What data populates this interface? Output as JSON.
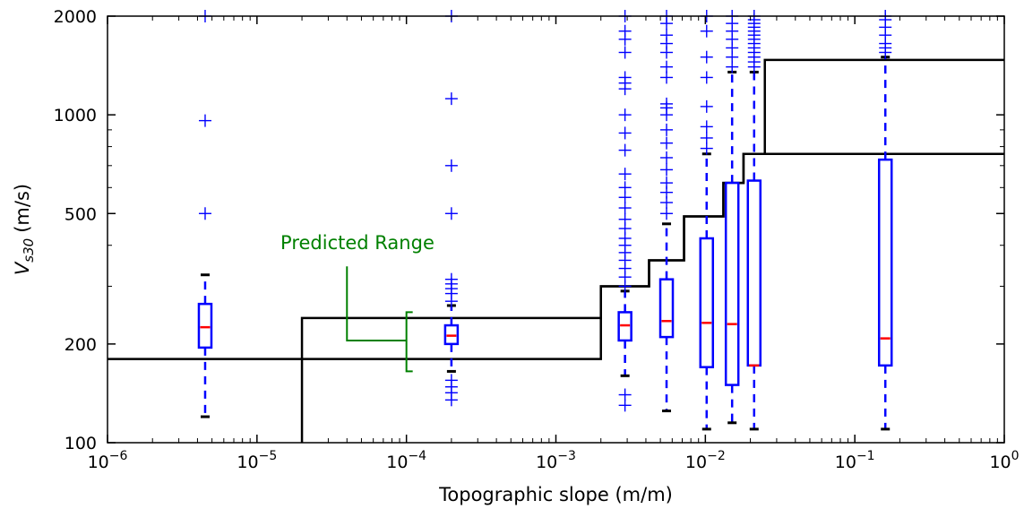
{
  "chart_data": {
    "type": "box",
    "title": "",
    "xlabel": "Topographic slope (m/m)",
    "ylabel": {
      "symbol_main": "V",
      "symbol_sub": "s30",
      "unit": "(m/s)"
    },
    "x_scale": "log",
    "y_scale": "log",
    "xlim": [
      1e-06,
      1
    ],
    "ylim": [
      100,
      2000
    ],
    "x_ticks": [
      {
        "value": 1e-06,
        "base": "10",
        "exp": "−6"
      },
      {
        "value": 1e-05,
        "base": "10",
        "exp": "−5"
      },
      {
        "value": 0.0001,
        "base": "10",
        "exp": "−4"
      },
      {
        "value": 0.001,
        "base": "10",
        "exp": "−3"
      },
      {
        "value": 0.01,
        "base": "10",
        "exp": "−2"
      },
      {
        "value": 0.1,
        "base": "10",
        "exp": "−1"
      },
      {
        "value": 1,
        "base": "10",
        "exp": "0"
      }
    ],
    "y_ticks": [
      {
        "value": 100,
        "label": "100"
      },
      {
        "value": 200,
        "label": "200"
      },
      {
        "value": 500,
        "label": "500"
      },
      {
        "value": 1000,
        "label": "1000"
      },
      {
        "value": 2000,
        "label": "2000"
      }
    ],
    "grid": false,
    "colors": {
      "box": "#0000ff",
      "median": "#ff0000",
      "step": "#000000",
      "annotation": "#008000",
      "cap": "#000000"
    },
    "boxes": [
      {
        "x": 4.5e-06,
        "q1": 195,
        "median": 225,
        "q3": 265,
        "whisker_low": 120,
        "whisker_high": 325,
        "fliers": [
          500,
          960,
          2000
        ]
      },
      {
        "x": 0.0002,
        "q1": 200,
        "median": 212,
        "q3": 228,
        "whisker_low": 165,
        "whisker_high": 262,
        "fliers": [
          135,
          142,
          148,
          155,
          270,
          285,
          295,
          305,
          315,
          500,
          700,
          1120,
          2000
        ]
      },
      {
        "x": 0.0029,
        "q1": 205,
        "median": 228,
        "q3": 250,
        "whisker_low": 160,
        "whisker_high": 290,
        "fliers": [
          130,
          140,
          300,
          320,
          340,
          360,
          380,
          400,
          420,
          450,
          480,
          520,
          560,
          600,
          660,
          780,
          880,
          1000,
          1200,
          1250,
          1300,
          1550,
          1700,
          1800,
          2000
        ]
      },
      {
        "x": 0.0055,
        "q1": 210,
        "median": 235,
        "q3": 315,
        "whisker_low": 125,
        "whisker_high": 465,
        "fliers": [
          500,
          540,
          580,
          620,
          680,
          740,
          820,
          900,
          1000,
          1050,
          1080,
          1300,
          1400,
          1550,
          1650,
          1750,
          1900,
          2000
        ]
      },
      {
        "x": 0.0102,
        "q1": 170,
        "median": 232,
        "q3": 420,
        "whisker_low": 110,
        "whisker_high": 760,
        "fliers": [
          790,
          850,
          920,
          1060,
          1300,
          1500,
          1800,
          2000
        ]
      },
      {
        "x": 0.0151,
        "q1": 150,
        "median": 230,
        "q3": 620,
        "whisker_low": 115,
        "whisker_high": 1350,
        "fliers": [
          1400,
          1500,
          1600,
          1700,
          1800,
          1900,
          2000
        ]
      },
      {
        "x": 0.0212,
        "q1": 172,
        "median": 172,
        "q3": 630,
        "whisker_low": 110,
        "whisker_high": 1350,
        "fliers": [
          1400,
          1450,
          1500,
          1550,
          1600,
          1650,
          1700,
          1750,
          1800,
          1850,
          1900,
          1950,
          2000
        ]
      },
      {
        "x": 0.16,
        "q1": 172,
        "median": 208,
        "q3": 730,
        "whisker_low": 110,
        "whisker_high": 1500,
        "fliers": [
          1550,
          1600,
          1650,
          1750,
          1850,
          1950,
          2000
        ]
      }
    ],
    "lower_step_line": {
      "x": [
        1e-06,
        0.002,
        0.002,
        0.0042,
        0.0042,
        0.0072,
        0.0072,
        0.0132,
        0.0132,
        0.018,
        0.018,
        1
      ],
      "y": [
        180,
        180,
        300,
        300,
        360,
        360,
        490,
        490,
        620,
        620,
        760,
        760
      ]
    },
    "upper_step_line": {
      "x": [
        2e-05,
        2e-05,
        0.002,
        0.002,
        0.0042,
        0.0042,
        0.0072,
        0.0072,
        0.0132,
        0.0132,
        0.018,
        0.018,
        0.025,
        0.025,
        1
      ],
      "y": [
        100,
        240,
        240,
        300,
        300,
        360,
        360,
        490,
        490,
        620,
        620,
        760,
        760,
        1470,
        1470
      ]
    },
    "annotation": {
      "text": "Predicted Range",
      "bracket_x": 0.0001,
      "bracket_y": [
        165,
        250
      ],
      "leader": {
        "x": [
          4e-05,
          4e-05,
          0.0001
        ],
        "y": [
          345,
          205,
          205
        ]
      },
      "label_anchor": {
        "x": 4.7e-05,
        "y": 390
      }
    }
  }
}
